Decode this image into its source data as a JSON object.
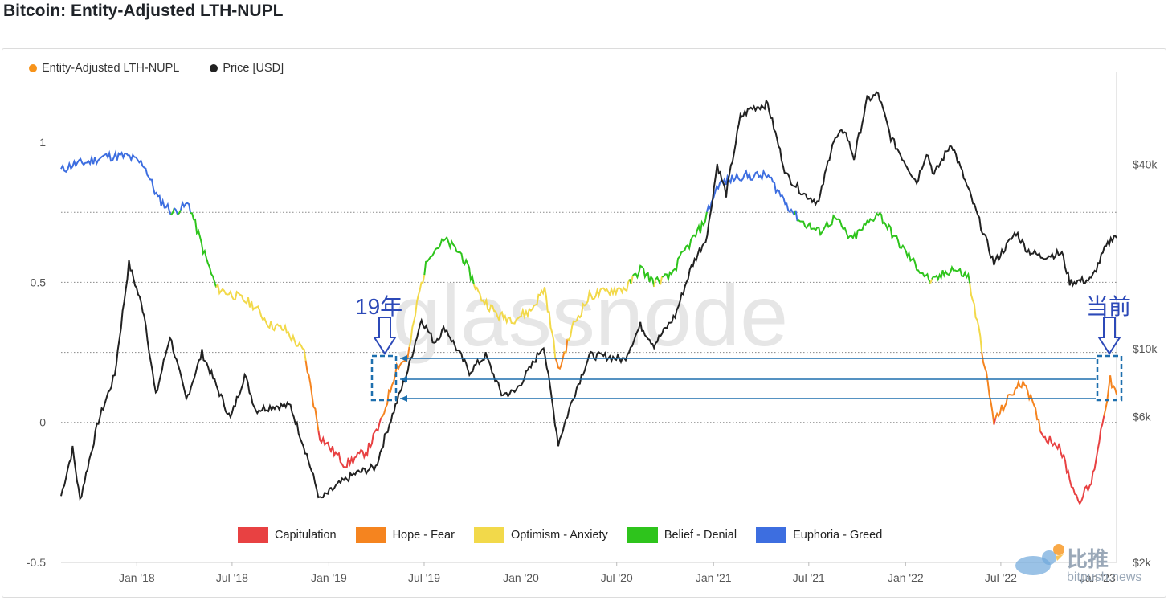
{
  "page": {
    "title": "Bitcoin: Entity-Adjusted LTH-NUPL"
  },
  "legend_top": [
    {
      "label": "Entity-Adjusted LTH-NUPL",
      "color": "#f7931a"
    },
    {
      "label": "Price [USD]",
      "color": "#222222"
    }
  ],
  "zones": [
    {
      "label": "Capitulation",
      "color": "#e84142",
      "range": [
        -1,
        0
      ]
    },
    {
      "label": "Hope - Fear",
      "color": "#f5841f",
      "range": [
        0,
        0.25
      ]
    },
    {
      "label": "Optimism - Anxiety",
      "color": "#f2d94a",
      "range": [
        0.25,
        0.5
      ]
    },
    {
      "label": "Belief - Denial",
      "color": "#2ec41c",
      "range": [
        0.5,
        0.75
      ]
    },
    {
      "label": "Euphoria - Greed",
      "color": "#3d6ee0",
      "range": [
        0.75,
        1.5
      ]
    }
  ],
  "watermark": "glassnode",
  "annotations": {
    "left": "19年",
    "right": "当前",
    "arrow_color": "#2c49b8",
    "line_color": "#1d6fae"
  },
  "logo": {
    "text": "比推",
    "sub": "bitpush.news"
  },
  "chart_data": {
    "type": "line",
    "title": "Bitcoin: Entity-Adjusted LTH-NUPL",
    "x_ticks": [
      "Jan '18",
      "Jul '18",
      "Jan '19",
      "Jul '19",
      "Jan '20",
      "Jul '20",
      "Jan '21",
      "Jul '21",
      "Jan '22",
      "Jul '22",
      "Jan '23"
    ],
    "x_tick_dates": [
      "2018-01-01",
      "2018-07-01",
      "2019-01-01",
      "2019-07-01",
      "2020-01-01",
      "2020-07-01",
      "2021-01-01",
      "2021-07-01",
      "2022-01-01",
      "2022-07-01",
      "2023-01-01"
    ],
    "xlim": [
      "2017-08-10",
      "2023-02-06"
    ],
    "y_left": {
      "ticks": [
        "1",
        "0.5",
        "0",
        "-0.5"
      ],
      "tick_values": [
        1,
        0.5,
        0,
        -0.5
      ],
      "lim": [
        -0.5,
        1.25
      ]
    },
    "y_right": {
      "ticks": [
        "$40k",
        "$10k",
        "$6k",
        "$2k"
      ],
      "tick_values": [
        40000,
        10000,
        6000,
        2000
      ],
      "scale": "log",
      "lim": [
        2000,
        80000
      ]
    },
    "grid_lines": [
      0.75,
      0.5,
      0.25,
      0
    ],
    "legend_placement": "top-left",
    "series": [
      {
        "name": "Entity-Adjusted LTH-NUPL",
        "axis": "left",
        "points": [
          [
            "2017-08-10",
            0.9
          ],
          [
            "2017-09-01",
            0.92
          ],
          [
            "2017-10-01",
            0.93
          ],
          [
            "2017-11-01",
            0.95
          ],
          [
            "2017-12-15",
            0.95
          ],
          [
            "2018-01-15",
            0.92
          ],
          [
            "2018-02-10",
            0.8
          ],
          [
            "2018-03-10",
            0.75
          ],
          [
            "2018-04-10",
            0.78
          ],
          [
            "2018-05-10",
            0.6
          ],
          [
            "2018-06-01",
            0.48
          ],
          [
            "2018-07-10",
            0.45
          ],
          [
            "2018-08-10",
            0.42
          ],
          [
            "2018-09-10",
            0.35
          ],
          [
            "2018-10-10",
            0.33
          ],
          [
            "2018-11-15",
            0.25
          ],
          [
            "2018-12-15",
            -0.05
          ],
          [
            "2019-02-01",
            -0.15
          ],
          [
            "2019-03-15",
            -0.1
          ],
          [
            "2019-04-10",
            0.0
          ],
          [
            "2019-05-10",
            0.2
          ],
          [
            "2019-05-31",
            0.23
          ],
          [
            "2019-06-20",
            0.45
          ],
          [
            "2019-07-10",
            0.6
          ],
          [
            "2019-08-10",
            0.65
          ],
          [
            "2019-09-10",
            0.6
          ],
          [
            "2019-10-15",
            0.45
          ],
          [
            "2019-11-20",
            0.38
          ],
          [
            "2019-12-20",
            0.37
          ],
          [
            "2020-01-20",
            0.4
          ],
          [
            "2020-02-15",
            0.48
          ],
          [
            "2020-03-12",
            0.18
          ],
          [
            "2020-04-10",
            0.35
          ],
          [
            "2020-05-10",
            0.45
          ],
          [
            "2020-06-15",
            0.47
          ],
          [
            "2020-07-20",
            0.48
          ],
          [
            "2020-08-15",
            0.55
          ],
          [
            "2020-09-10",
            0.5
          ],
          [
            "2020-10-10",
            0.52
          ],
          [
            "2020-11-10",
            0.62
          ],
          [
            "2020-12-10",
            0.7
          ],
          [
            "2021-01-10",
            0.85
          ],
          [
            "2021-02-20",
            0.88
          ],
          [
            "2021-04-15",
            0.88
          ],
          [
            "2021-05-20",
            0.78
          ],
          [
            "2021-06-15",
            0.72
          ],
          [
            "2021-07-20",
            0.68
          ],
          [
            "2021-08-20",
            0.73
          ],
          [
            "2021-09-20",
            0.65
          ],
          [
            "2021-11-10",
            0.75
          ],
          [
            "2021-12-15",
            0.65
          ],
          [
            "2022-01-25",
            0.55
          ],
          [
            "2022-02-20",
            0.5
          ],
          [
            "2022-03-30",
            0.55
          ],
          [
            "2022-04-30",
            0.52
          ],
          [
            "2022-05-20",
            0.33
          ],
          [
            "2022-06-18",
            0.0
          ],
          [
            "2022-07-20",
            0.1
          ],
          [
            "2022-08-15",
            0.15
          ],
          [
            "2022-09-20",
            -0.05
          ],
          [
            "2022-10-20",
            -0.08
          ],
          [
            "2022-11-09",
            -0.2
          ],
          [
            "2022-11-25",
            -0.28
          ],
          [
            "2022-12-20",
            -0.22
          ],
          [
            "2023-01-10",
            0.0
          ],
          [
            "2023-01-25",
            0.15
          ],
          [
            "2023-02-06",
            0.1
          ]
        ]
      },
      {
        "name": "Price [USD]",
        "axis": "right",
        "points": [
          [
            "2017-08-10",
            3300
          ],
          [
            "2017-09-01",
            4700
          ],
          [
            "2017-09-15",
            3200
          ],
          [
            "2017-10-20",
            5800
          ],
          [
            "2017-11-20",
            8200
          ],
          [
            "2017-12-17",
            19000
          ],
          [
            "2018-01-15",
            13000
          ],
          [
            "2018-02-06",
            7000
          ],
          [
            "2018-03-05",
            11000
          ],
          [
            "2018-04-05",
            6800
          ],
          [
            "2018-05-05",
            9700
          ],
          [
            "2018-06-28",
            5900
          ],
          [
            "2018-07-25",
            8200
          ],
          [
            "2018-08-15",
            6300
          ],
          [
            "2018-09-20",
            6500
          ],
          [
            "2018-10-20",
            6500
          ],
          [
            "2018-11-20",
            4500
          ],
          [
            "2018-12-15",
            3200
          ],
          [
            "2019-01-20",
            3600
          ],
          [
            "2019-02-20",
            3900
          ],
          [
            "2019-03-31",
            4100
          ],
          [
            "2019-04-20",
            5300
          ],
          [
            "2019-05-31",
            8500
          ],
          [
            "2019-06-26",
            12500
          ],
          [
            "2019-07-20",
            10500
          ],
          [
            "2019-08-10",
            11700
          ],
          [
            "2019-09-25",
            8400
          ],
          [
            "2019-10-26",
            9500
          ],
          [
            "2019-11-25",
            7100
          ],
          [
            "2019-12-20",
            7200
          ],
          [
            "2020-01-20",
            8700
          ],
          [
            "2020-02-13",
            10300
          ],
          [
            "2020-03-12",
            4900
          ],
          [
            "2020-04-10",
            7000
          ],
          [
            "2020-05-10",
            9500
          ],
          [
            "2020-06-15",
            9400
          ],
          [
            "2020-07-15",
            9200
          ],
          [
            "2020-08-15",
            11900
          ],
          [
            "2020-09-10",
            10300
          ],
          [
            "2020-10-20",
            12800
          ],
          [
            "2020-11-20",
            18500
          ],
          [
            "2020-12-20",
            23500
          ],
          [
            "2021-01-08",
            40000
          ],
          [
            "2021-01-25",
            32000
          ],
          [
            "2021-02-21",
            57000
          ],
          [
            "2021-03-13",
            61000
          ],
          [
            "2021-04-14",
            63000
          ],
          [
            "2021-05-19",
            37000
          ],
          [
            "2021-06-22",
            32000
          ],
          [
            "2021-07-20",
            30000
          ],
          [
            "2021-08-15",
            47000
          ],
          [
            "2021-09-07",
            52000
          ],
          [
            "2021-09-25",
            42000
          ],
          [
            "2021-10-20",
            65000
          ],
          [
            "2021-11-10",
            68000
          ],
          [
            "2021-12-04",
            49000
          ],
          [
            "2022-01-22",
            35000
          ],
          [
            "2022-02-10",
            44000
          ],
          [
            "2022-02-24",
            37000
          ],
          [
            "2022-03-29",
            47000
          ],
          [
            "2022-05-12",
            29000
          ],
          [
            "2022-06-18",
            19000
          ],
          [
            "2022-07-30",
            24000
          ],
          [
            "2022-08-20",
            21000
          ],
          [
            "2022-09-15",
            20000
          ],
          [
            "2022-10-25",
            20500
          ],
          [
            "2022-11-09",
            16500
          ],
          [
            "2022-12-20",
            16800
          ],
          [
            "2023-01-14",
            21000
          ],
          [
            "2023-02-01",
            23500
          ],
          [
            "2023-02-06",
            23000
          ]
        ]
      }
    ]
  }
}
